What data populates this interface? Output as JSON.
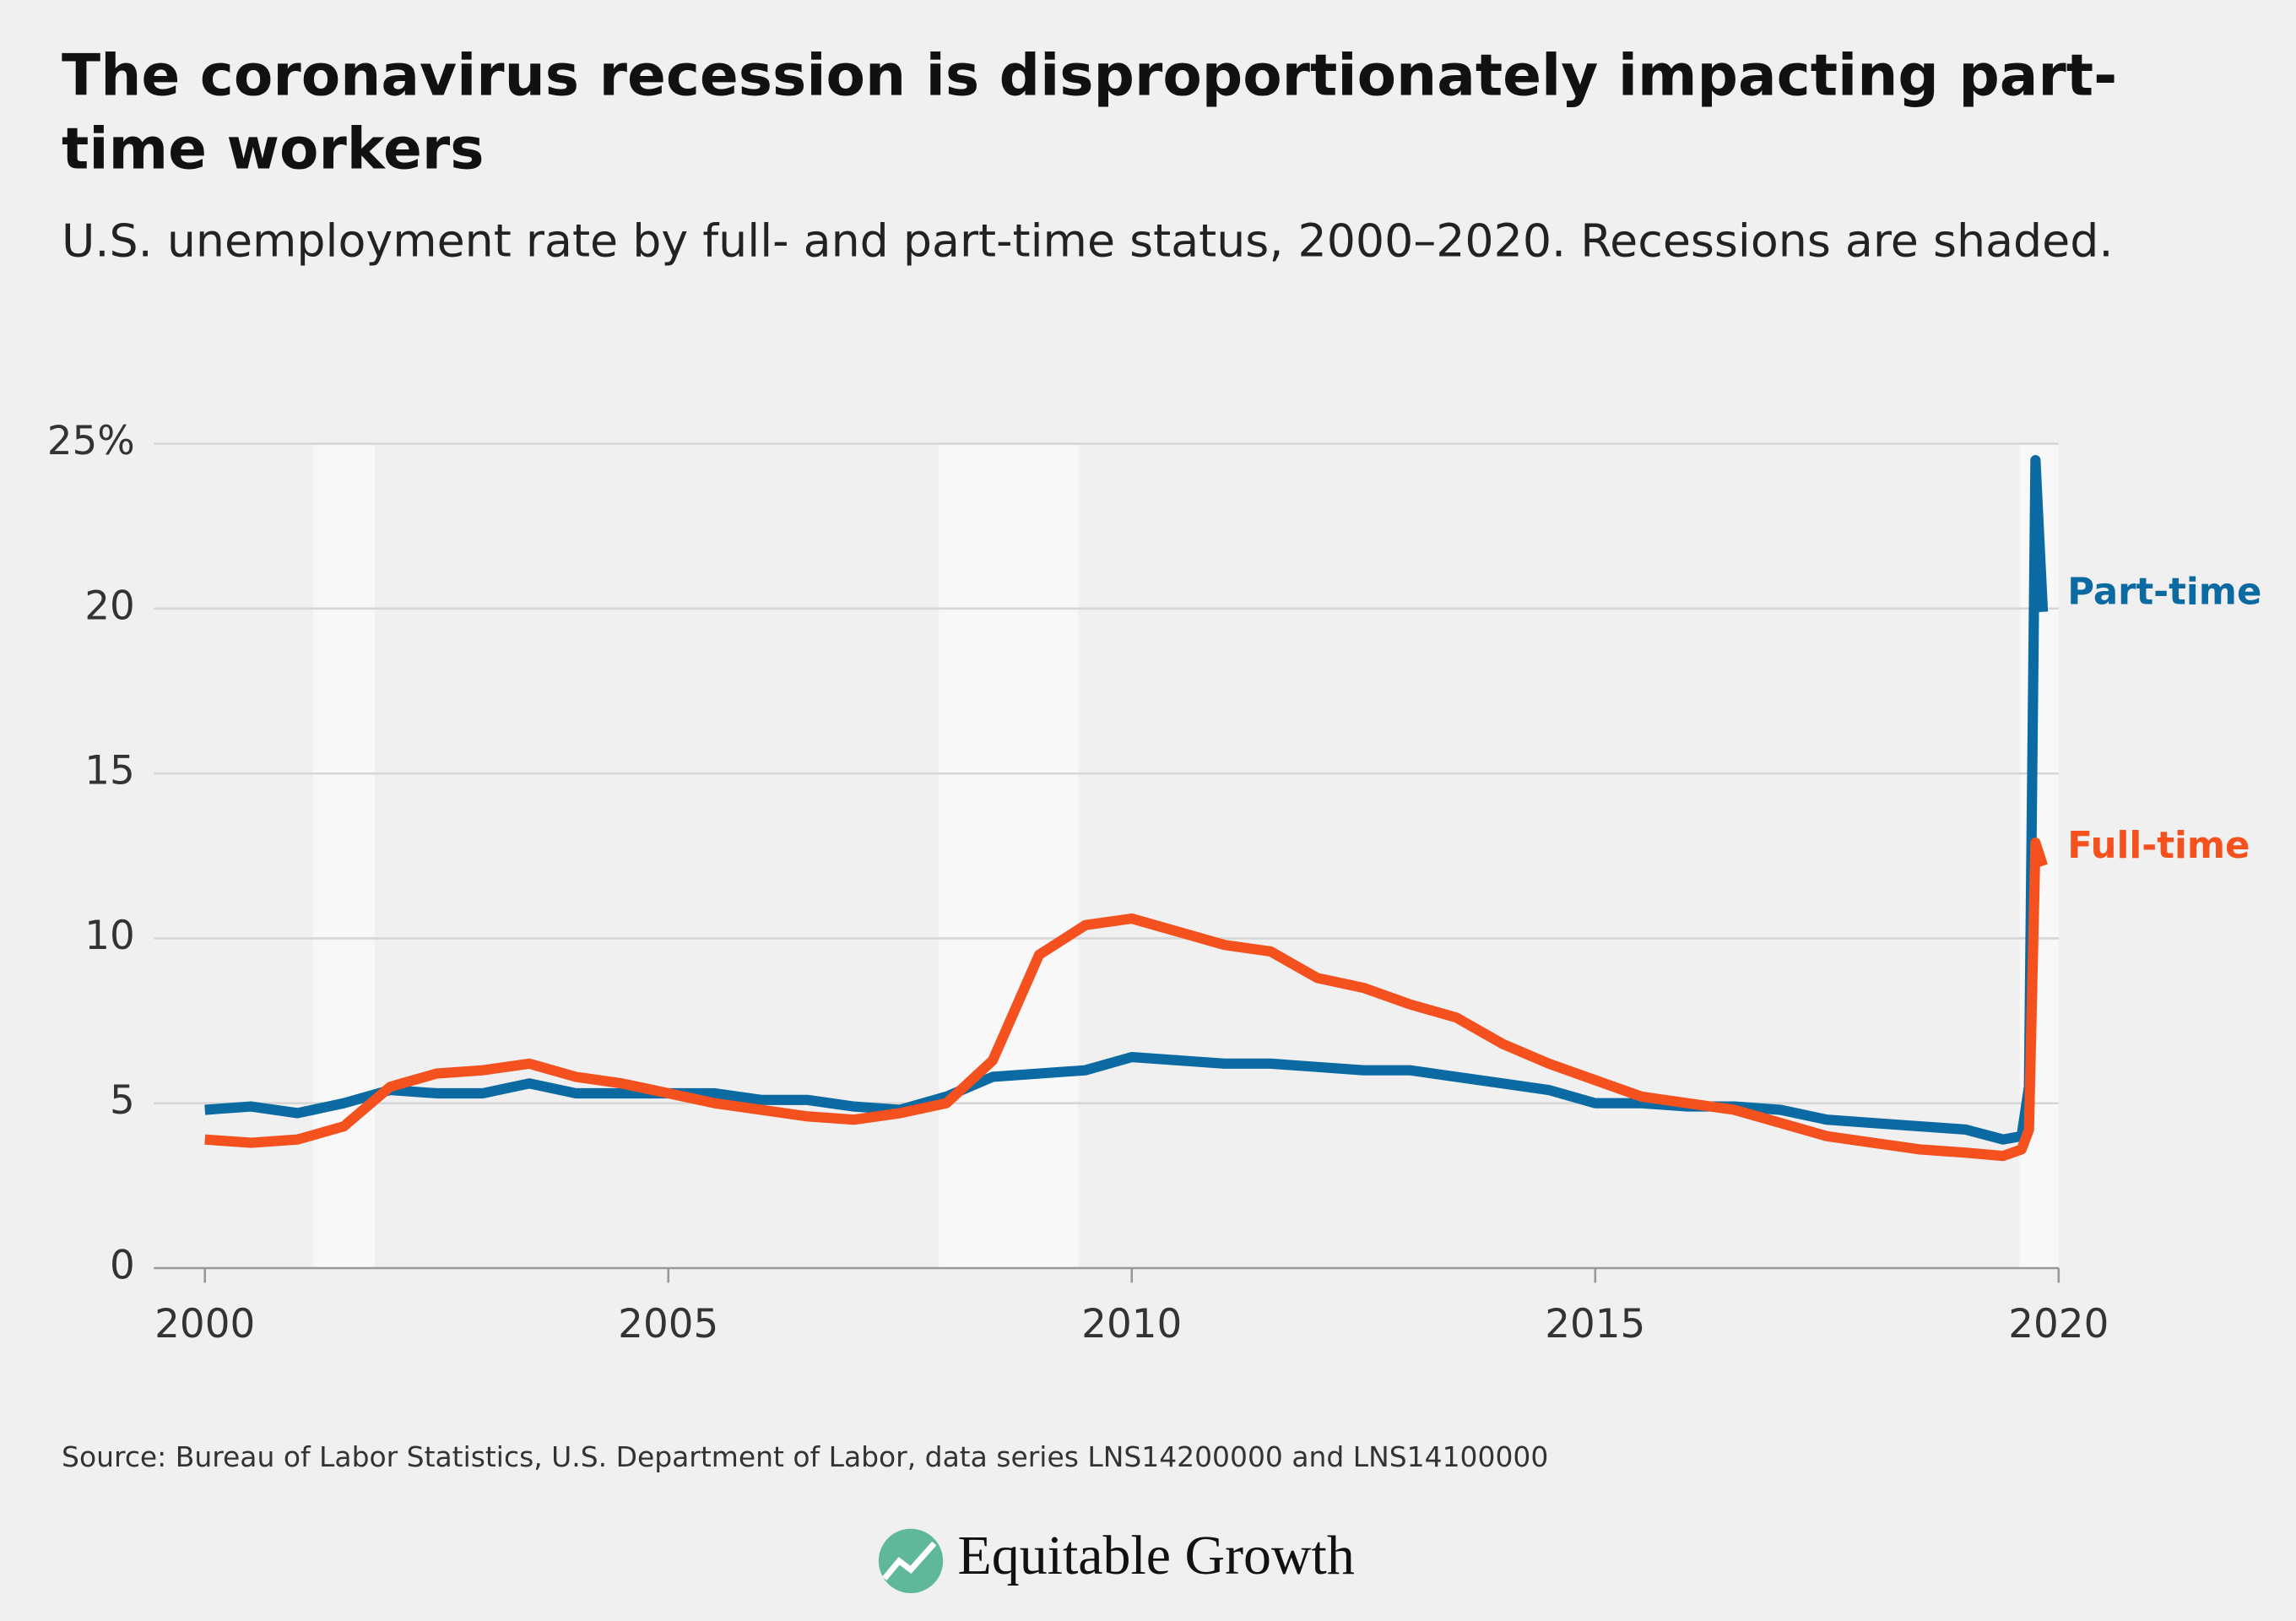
{
  "chart_data": {
    "type": "line",
    "title": "The coronavirus recession is disproportionately impacting part-time workers",
    "subtitle": "U.S. unemployment rate by full- and part-time status, 2000–2020. Recessions are shaded.",
    "source": "Source: Bureau of Labor Statistics, U.S. Department of Labor, data series LNS14200000 and LNS14100000",
    "brand": "Equitable Growth",
    "x": [
      2000,
      2000.5,
      2001,
      2001.5,
      2002,
      2002.5,
      2003,
      2003.5,
      2004,
      2004.5,
      2005,
      2005.5,
      2006,
      2006.5,
      2007,
      2007.5,
      2008,
      2008.5,
      2009,
      2009.5,
      2010,
      2010.5,
      2011,
      2011.5,
      2012,
      2012.5,
      2013,
      2013.5,
      2014,
      2014.5,
      2015,
      2015.5,
      2016,
      2016.5,
      2017,
      2017.5,
      2018,
      2018.5,
      2019,
      2019.4,
      2019.6,
      2019.68,
      2019.75,
      2019.83
    ],
    "series": [
      {
        "name": "Part-time",
        "color": "#0b6aa2",
        "values": [
          4.8,
          4.9,
          4.7,
          5.0,
          5.4,
          5.3,
          5.3,
          5.6,
          5.3,
          5.3,
          5.3,
          5.3,
          5.1,
          5.1,
          4.9,
          4.8,
          5.2,
          5.8,
          5.9,
          6.0,
          6.4,
          6.3,
          6.2,
          6.2,
          6.1,
          6.0,
          6.0,
          5.8,
          5.6,
          5.4,
          5.0,
          5.0,
          4.9,
          4.9,
          4.8,
          4.5,
          4.4,
          4.3,
          4.2,
          3.9,
          4.0,
          5.5,
          24.5,
          19.9
        ]
      },
      {
        "name": "Full-time",
        "color": "#f4511e",
        "values": [
          3.9,
          3.8,
          3.9,
          4.3,
          5.5,
          5.9,
          6.0,
          6.2,
          5.8,
          5.6,
          5.3,
          5.0,
          4.8,
          4.6,
          4.5,
          4.7,
          5.0,
          6.3,
          9.5,
          10.4,
          10.6,
          10.2,
          9.8,
          9.6,
          8.8,
          8.5,
          8.0,
          7.6,
          6.8,
          6.2,
          5.7,
          5.2,
          5.0,
          4.8,
          4.4,
          4.0,
          3.8,
          3.6,
          3.5,
          3.4,
          3.6,
          4.2,
          12.9,
          12.2
        ]
      }
    ],
    "recessions": [
      [
        2001.17,
        2001.83
      ],
      [
        2007.92,
        2009.42
      ],
      [
        2019.58,
        2020
      ]
    ],
    "xlim": [
      1999.45,
      2020
    ],
    "xticks": [
      2000,
      2005,
      2010,
      2015,
      2020
    ],
    "ylim": [
      0,
      25
    ],
    "yticks": [
      0,
      5,
      10,
      15,
      20,
      {
        "value": 25,
        "label": "25%"
      }
    ],
    "grid": true
  }
}
